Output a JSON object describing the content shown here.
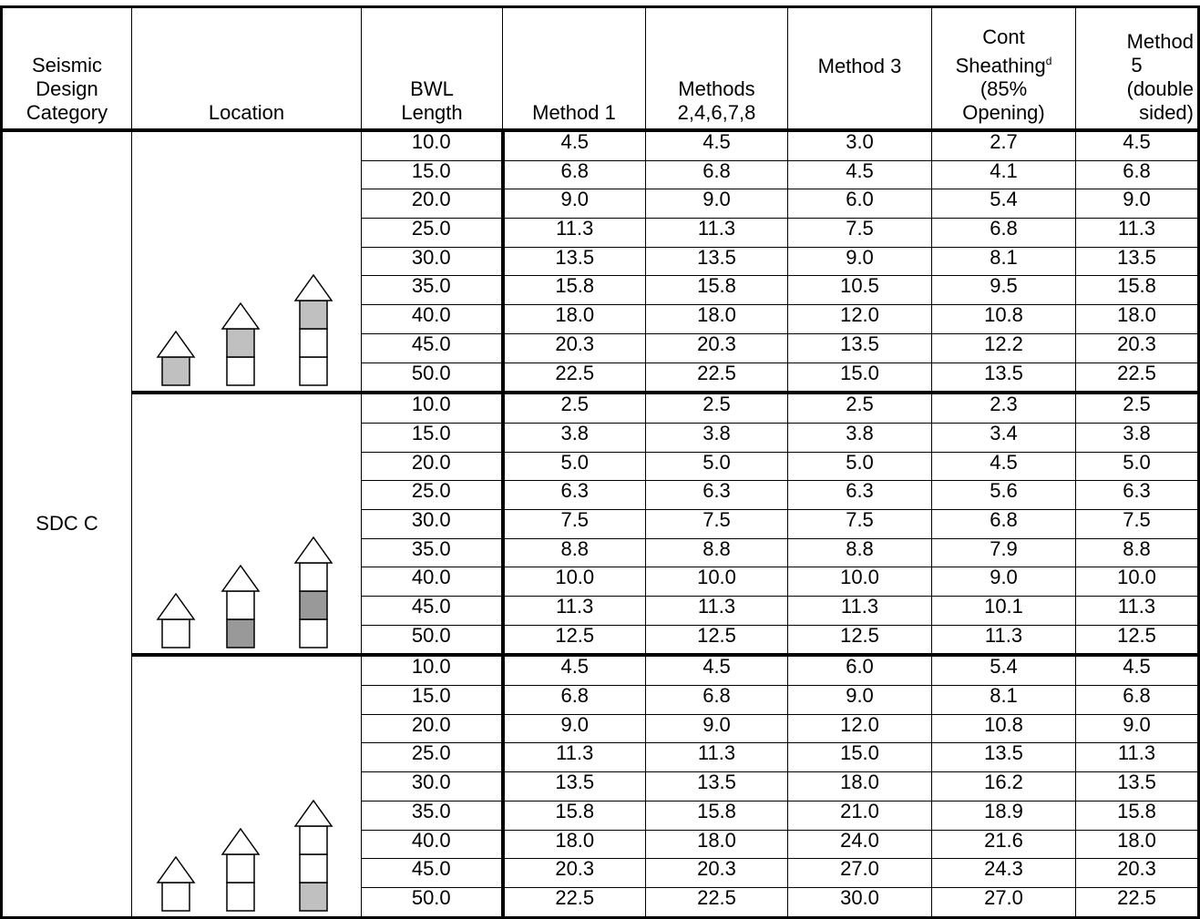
{
  "table": {
    "header": {
      "seismic": [
        "Seismic",
        "Design",
        "Category"
      ],
      "location": "Location",
      "bwl": [
        "BWL",
        "Length"
      ],
      "method1": "Method 1",
      "methods2": [
        "Methods",
        "2,4,6,7,8"
      ],
      "method3": "Method 3",
      "cont": {
        "line1": "Cont",
        "line2": "Sheathing",
        "sup": "d",
        "line3": "(85%",
        "line4": "Opening)"
      },
      "method5": [
        "Method",
        "5",
        "(double",
        "sided)"
      ]
    },
    "category": "SDC C",
    "groups": [
      {
        "rows": [
          [
            "10.0",
            "4.5",
            "4.5",
            "3.0",
            "2.7",
            "4.5"
          ],
          [
            "15.0",
            "6.8",
            "6.8",
            "4.5",
            "4.1",
            "6.8"
          ],
          [
            "20.0",
            "9.0",
            "9.0",
            "6.0",
            "5.4",
            "9.0"
          ],
          [
            "25.0",
            "11.3",
            "11.3",
            "7.5",
            "6.8",
            "11.3"
          ],
          [
            "30.0",
            "13.5",
            "13.5",
            "9.0",
            "8.1",
            "13.5"
          ],
          [
            "35.0",
            "15.8",
            "15.8",
            "10.5",
            "9.5",
            "15.8"
          ],
          [
            "40.0",
            "18.0",
            "18.0",
            "12.0",
            "10.8",
            "18.0"
          ],
          [
            "45.0",
            "20.3",
            "20.3",
            "13.5",
            "12.2",
            "20.3"
          ],
          [
            "50.0",
            "22.5",
            "22.5",
            "15.0",
            "13.5",
            "22.5"
          ]
        ]
      },
      {
        "rows": [
          [
            "10.0",
            "2.5",
            "2.5",
            "2.5",
            "2.3",
            "2.5"
          ],
          [
            "15.0",
            "3.8",
            "3.8",
            "3.8",
            "3.4",
            "3.8"
          ],
          [
            "20.0",
            "5.0",
            "5.0",
            "5.0",
            "4.5",
            "5.0"
          ],
          [
            "25.0",
            "6.3",
            "6.3",
            "6.3",
            "5.6",
            "6.3"
          ],
          [
            "30.0",
            "7.5",
            "7.5",
            "7.5",
            "6.8",
            "7.5"
          ],
          [
            "35.0",
            "8.8",
            "8.8",
            "8.8",
            "7.9",
            "8.8"
          ],
          [
            "40.0",
            "10.0",
            "10.0",
            "10.0",
            "9.0",
            "10.0"
          ],
          [
            "45.0",
            "11.3",
            "11.3",
            "11.3",
            "10.1",
            "11.3"
          ],
          [
            "50.0",
            "12.5",
            "12.5",
            "12.5",
            "11.3",
            "12.5"
          ]
        ]
      },
      {
        "rows": [
          [
            "10.0",
            "4.5",
            "4.5",
            "6.0",
            "5.4",
            "4.5"
          ],
          [
            "15.0",
            "6.8",
            "6.8",
            "9.0",
            "8.1",
            "6.8"
          ],
          [
            "20.0",
            "9.0",
            "9.0",
            "12.0",
            "10.8",
            "9.0"
          ],
          [
            "25.0",
            "11.3",
            "11.3",
            "15.0",
            "13.5",
            "11.3"
          ],
          [
            "30.0",
            "13.5",
            "13.5",
            "18.0",
            "16.2",
            "13.5"
          ],
          [
            "35.0",
            "15.8",
            "15.8",
            "21.0",
            "18.9",
            "15.8"
          ],
          [
            "40.0",
            "18.0",
            "18.0",
            "24.0",
            "21.6",
            "18.0"
          ],
          [
            "45.0",
            "20.3",
            "20.3",
            "27.0",
            "24.3",
            "20.3"
          ],
          [
            "50.0",
            "22.5",
            "22.5",
            "30.0",
            "27.0",
            "22.5"
          ]
        ]
      }
    ]
  }
}
